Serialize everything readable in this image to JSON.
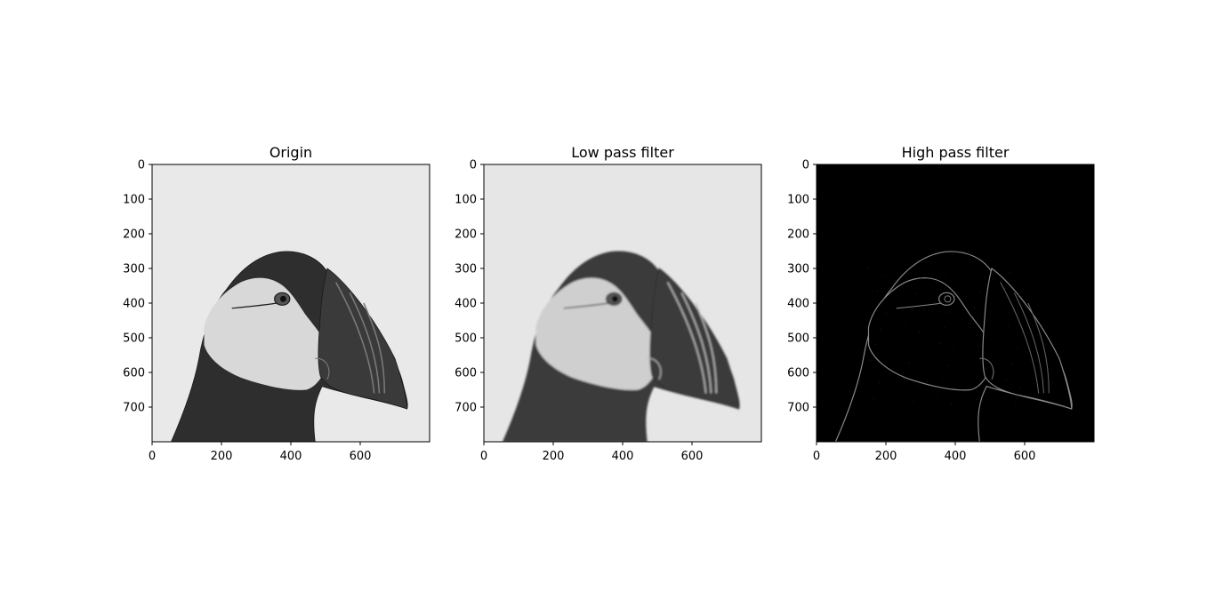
{
  "figure": {
    "panels": [
      {
        "key": "origin",
        "title": "Origin",
        "background": "#e9e9e9",
        "bird_fill": "#2e2e2e",
        "face_fill": "#d8d8d8",
        "outline_color": "#1a1a1a",
        "edge_color": "#7a7a7a"
      },
      {
        "key": "lowpass",
        "title": "Low pass filter",
        "background": "#e6e6e6",
        "bird_fill": "#3a3a3a",
        "face_fill": "#cfcfcf",
        "outline_color": "#2a2a2a",
        "edge_color": "#bdbdbd"
      },
      {
        "key": "highpass",
        "title": "High pass filter",
        "background": "#000000",
        "bird_fill": "#000000",
        "face_fill": "#000000",
        "outline_color": "#8a8a8a",
        "edge_color": "#6a6a6a"
      }
    ],
    "xticks": [
      0,
      200,
      400,
      600
    ],
    "yticks": [
      0,
      100,
      200,
      300,
      400,
      500,
      600,
      700
    ],
    "image_extent": [
      0,
      800
    ]
  }
}
